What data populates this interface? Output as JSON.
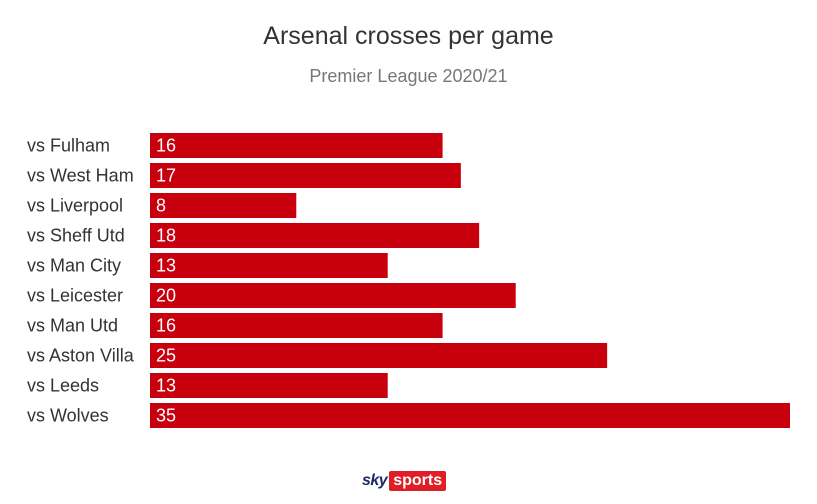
{
  "chart_data": {
    "type": "bar",
    "orientation": "horizontal",
    "title": "Arsenal crosses per game",
    "subtitle": "Premier League 2020/21",
    "categories": [
      "vs Fulham",
      "vs West Ham",
      "vs Liverpool",
      "vs Sheff Utd",
      "vs Man City",
      "vs Leicester",
      "vs Man Utd",
      "vs Aston Villa",
      "vs Leeds",
      "vs Wolves"
    ],
    "values": [
      16,
      17,
      8,
      18,
      13,
      20,
      16,
      25,
      13,
      35
    ],
    "xlim": [
      0,
      35
    ],
    "grid": false,
    "bar_color": "#c8000e",
    "label_color": "#ffffff"
  },
  "branding": {
    "logo_text_sky": "sky",
    "logo_text_sports": "sports",
    "logo_colors": {
      "sky": "#1c2a6b",
      "sports_bg": "#e01e26"
    }
  }
}
